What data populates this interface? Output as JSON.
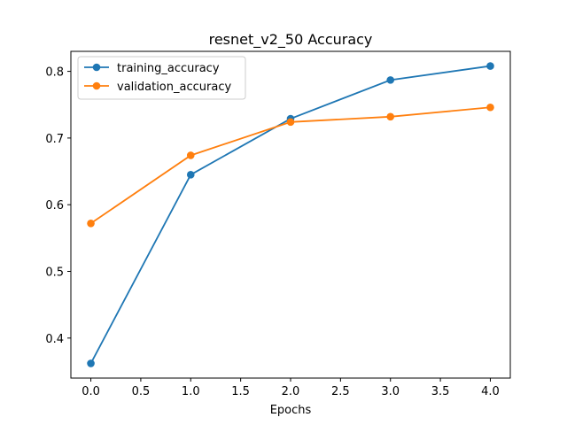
{
  "chart_data": {
    "type": "line",
    "title": "resnet_v2_50 Accuracy",
    "xlabel": "Epochs",
    "ylabel": "",
    "x": [
      0,
      1,
      2,
      3,
      4
    ],
    "xlim": [
      -0.2,
      4.2
    ],
    "ylim": [
      0.34,
      0.83
    ],
    "xticks": [
      0.0,
      0.5,
      1.0,
      1.5,
      2.0,
      2.5,
      3.0,
      3.5,
      4.0
    ],
    "xtick_labels": [
      "0.0",
      "0.5",
      "1.0",
      "1.5",
      "2.0",
      "2.5",
      "3.0",
      "3.5",
      "4.0"
    ],
    "yticks": [
      0.4,
      0.5,
      0.6,
      0.7,
      0.8
    ],
    "ytick_labels": [
      "0.4",
      "0.5",
      "0.6",
      "0.7",
      "0.8"
    ],
    "grid": false,
    "legend_position": "top-left",
    "series": [
      {
        "name": "training_accuracy",
        "color": "#1f77b4",
        "values": [
          0.362,
          0.645,
          0.729,
          0.787,
          0.808
        ]
      },
      {
        "name": "validation_accuracy",
        "color": "#ff7f0e",
        "values": [
          0.572,
          0.674,
          0.724,
          0.732,
          0.746
        ]
      }
    ]
  }
}
